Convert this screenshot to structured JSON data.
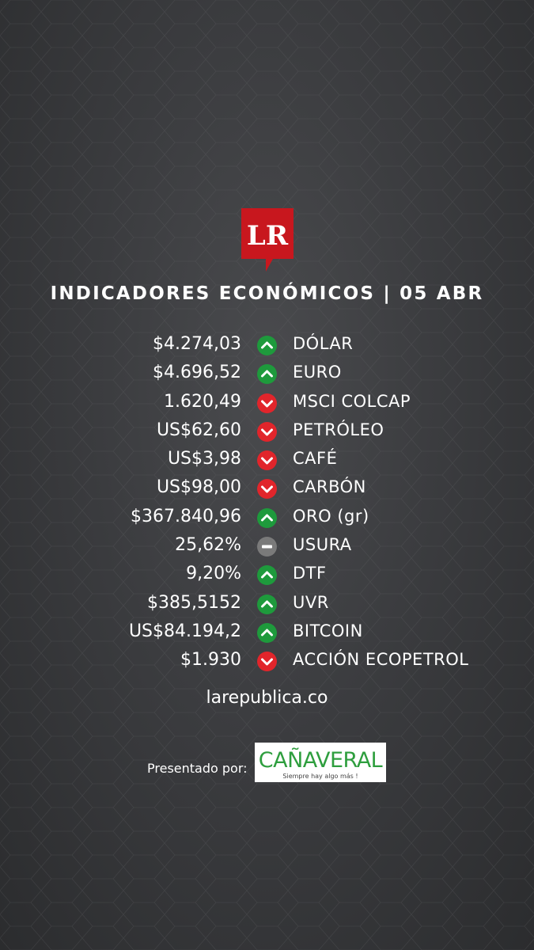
{
  "header": {
    "logo_text": "LR",
    "title": "INDICADORES ECONÓMICOS | 05 ABR"
  },
  "indicators": [
    {
      "value": "$4.274,03",
      "trend": "up",
      "label": "DÓLAR"
    },
    {
      "value": "$4.696,52",
      "trend": "up",
      "label": "EURO"
    },
    {
      "value": "1.620,49",
      "trend": "down",
      "label": "MSCI COLCAP"
    },
    {
      "value": "US$62,60",
      "trend": "down",
      "label": "PETRÓLEO"
    },
    {
      "value": "US$3,98",
      "trend": "down",
      "label": "CAFÉ"
    },
    {
      "value": "US$98,00",
      "trend": "down",
      "label": "CARBÓN"
    },
    {
      "value": "$367.840,96",
      "trend": "up",
      "label": "ORO (gr)"
    },
    {
      "value": "25,62%",
      "trend": "flat",
      "label": "USURA"
    },
    {
      "value": "9,20%",
      "trend": "up",
      "label": "DTF"
    },
    {
      "value": "$385,5152",
      "trend": "up",
      "label": "UVR"
    },
    {
      "value": "US$84.194,2",
      "trend": "up",
      "label": "BITCOIN"
    },
    {
      "value": "$1.930",
      "trend": "down",
      "label": "ACCIÓN ECOPETROL"
    }
  ],
  "footer": {
    "site": "larepublica.co",
    "presented_by": "Presentado por:",
    "sponsor_name": "CAÑAVERAL",
    "sponsor_tagline": "Siempre hay algo más !"
  },
  "colors": {
    "up": "#1e9a3c",
    "down": "#e1252b",
    "flat": "#7a7a7a",
    "logo_red": "#c8171e",
    "sponsor_green": "#2e9e3e"
  }
}
